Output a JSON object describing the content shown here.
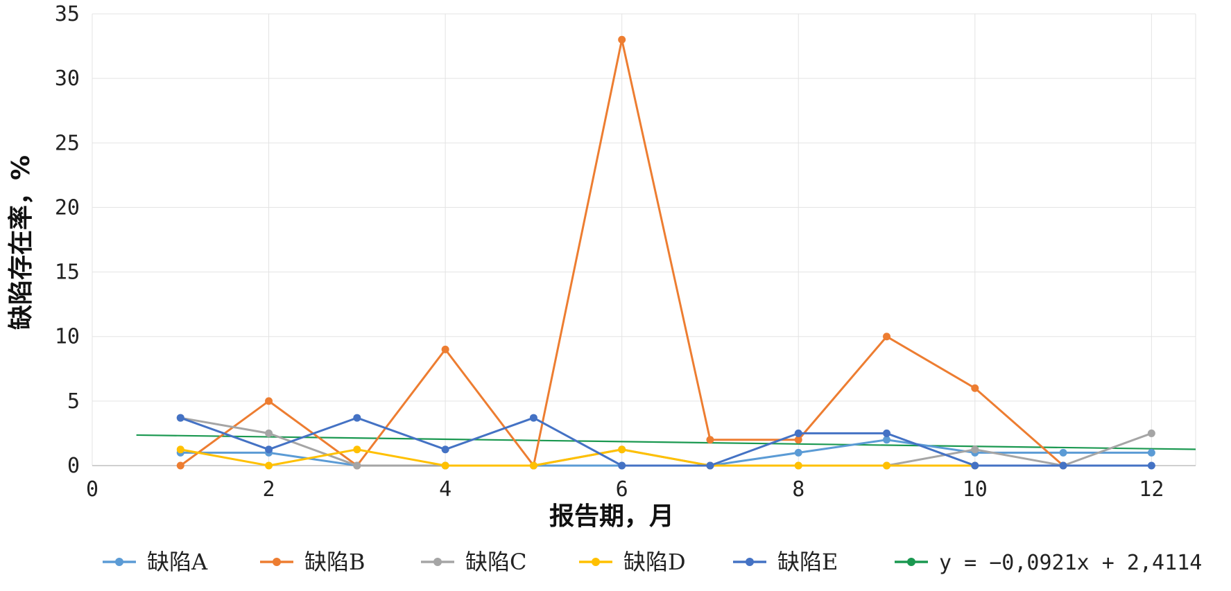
{
  "chart_data": {
    "type": "line",
    "title": "",
    "xlabel": "报告期，月",
    "ylabel": "缺陷存在率，%",
    "xlim": [
      0,
      12.5
    ],
    "ylim": [
      0,
      35
    ],
    "x_ticks": [
      0,
      2,
      4,
      6,
      8,
      10,
      12
    ],
    "y_ticks": [
      0,
      5,
      10,
      15,
      20,
      25,
      30,
      35
    ],
    "grid": true,
    "legend_position": "bottom",
    "x": [
      1,
      2,
      3,
      4,
      5,
      6,
      7,
      8,
      9,
      10,
      11,
      12
    ],
    "series": [
      {
        "name": "缺陷A",
        "color": "#5b9bd5",
        "values": [
          1,
          1,
          0,
          0,
          0,
          0,
          0,
          1,
          2,
          1,
          1,
          1
        ]
      },
      {
        "name": "缺陷B",
        "color": "#ed7d31",
        "values": [
          0,
          5,
          0,
          9,
          0,
          33,
          2,
          2,
          10,
          6,
          0,
          null
        ]
      },
      {
        "name": "缺陷C",
        "color": "#a5a5a5",
        "values": [
          3.7,
          2.5,
          0,
          0,
          0,
          1.25,
          0,
          0,
          0,
          1.25,
          0,
          2.5
        ]
      },
      {
        "name": "缺陷D",
        "color": "#ffc000",
        "values": [
          1.25,
          0,
          1.25,
          0,
          0,
          1.25,
          0,
          0,
          0,
          0,
          null,
          null
        ]
      },
      {
        "name": "缺陷E",
        "color": "#4472c4",
        "values": [
          3.7,
          1.25,
          3.7,
          1.25,
          3.7,
          0,
          0,
          2.5,
          2.5,
          0,
          0,
          0
        ]
      }
    ],
    "trendline": {
      "label": "y = −0,0921x + 2,4114",
      "color": "#1a9850",
      "slope": -0.0921,
      "intercept": 2.4114,
      "x_range": [
        0.5,
        12.5
      ]
    }
  }
}
